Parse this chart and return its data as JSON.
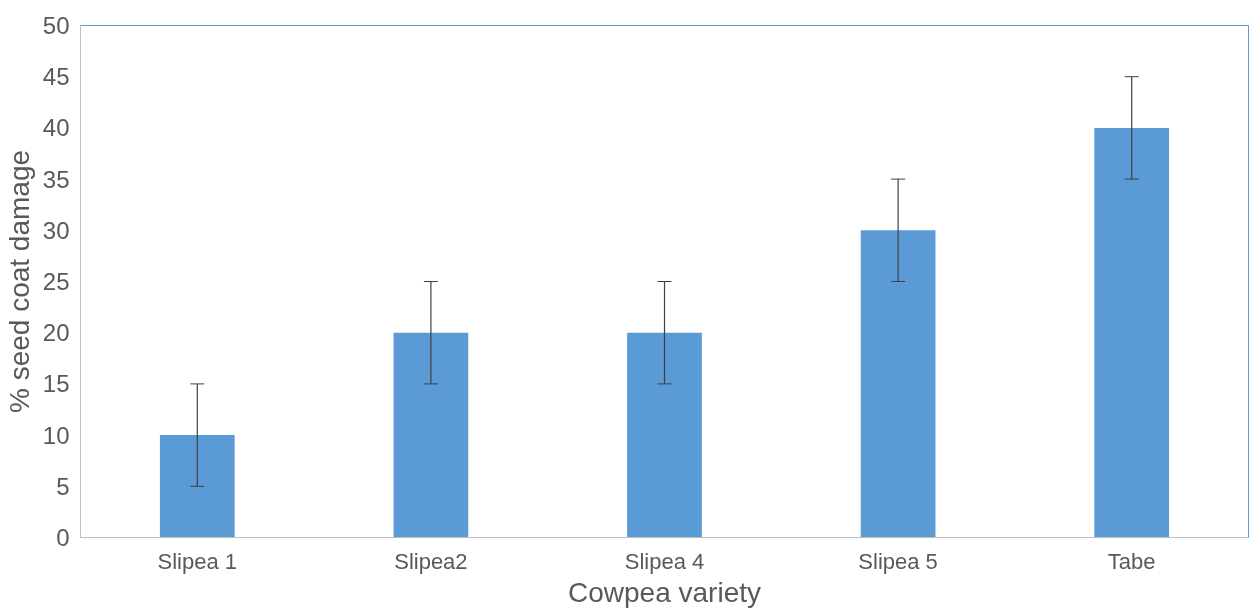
{
  "chart_data": {
    "type": "bar",
    "xlabel": "Cowpea variety",
    "ylabel": "% seed coat damage",
    "categories": [
      "Slipea 1",
      "Slipea2",
      "Slipea 4",
      "Slipea 5",
      "Tabe"
    ],
    "values": [
      10,
      20,
      20,
      30,
      40
    ],
    "errors": [
      5,
      5,
      5,
      5,
      5
    ],
    "color": "#5b9bd5",
    "ylim": [
      0,
      50
    ],
    "yticks": [
      0,
      5,
      10,
      15,
      20,
      25,
      30,
      35,
      40,
      45,
      50
    ],
    "grid": false
  }
}
